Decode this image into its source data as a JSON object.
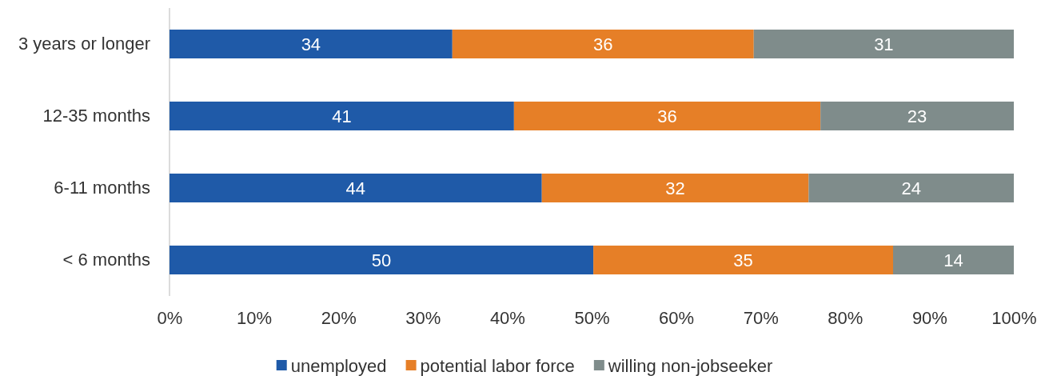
{
  "chart_data": {
    "type": "bar",
    "orientation": "horizontal",
    "stacked": true,
    "categories": [
      "3 years or longer",
      "12-35 months",
      "6-11 months",
      "< 6 months"
    ],
    "series": [
      {
        "name": "unemployed",
        "color": "#1f5aa8",
        "values": [
          33.5,
          40.8,
          44.1,
          50.2
        ],
        "value_labels": [
          "34",
          "41",
          "44",
          "50"
        ]
      },
      {
        "name": "potential labor force",
        "color": "#e67f27",
        "values": [
          35.7,
          36.3,
          31.6,
          35.5
        ],
        "value_labels": [
          "36",
          "36",
          "32",
          "35"
        ]
      },
      {
        "name": "willing non-jobseeker",
        "color": "#7f8c8b",
        "values": [
          30.8,
          22.9,
          24.3,
          14.3
        ],
        "value_labels": [
          "31",
          "23",
          "24",
          "14"
        ]
      }
    ],
    "xlim": [
      0,
      100
    ],
    "xticks": [
      {
        "value": 0,
        "label": "0%"
      },
      {
        "value": 10,
        "label": "10%"
      },
      {
        "value": 20,
        "label": "20%"
      },
      {
        "value": 30,
        "label": "30%"
      },
      {
        "value": 40,
        "label": "40%"
      },
      {
        "value": 50,
        "label": "50%"
      },
      {
        "value": 60,
        "label": "60%"
      },
      {
        "value": 70,
        "label": "70%"
      },
      {
        "value": 80,
        "label": "80%"
      },
      {
        "value": 90,
        "label": "90%"
      },
      {
        "value": 100,
        "label": "100%"
      }
    ],
    "grid": false,
    "legend": "bottom"
  }
}
